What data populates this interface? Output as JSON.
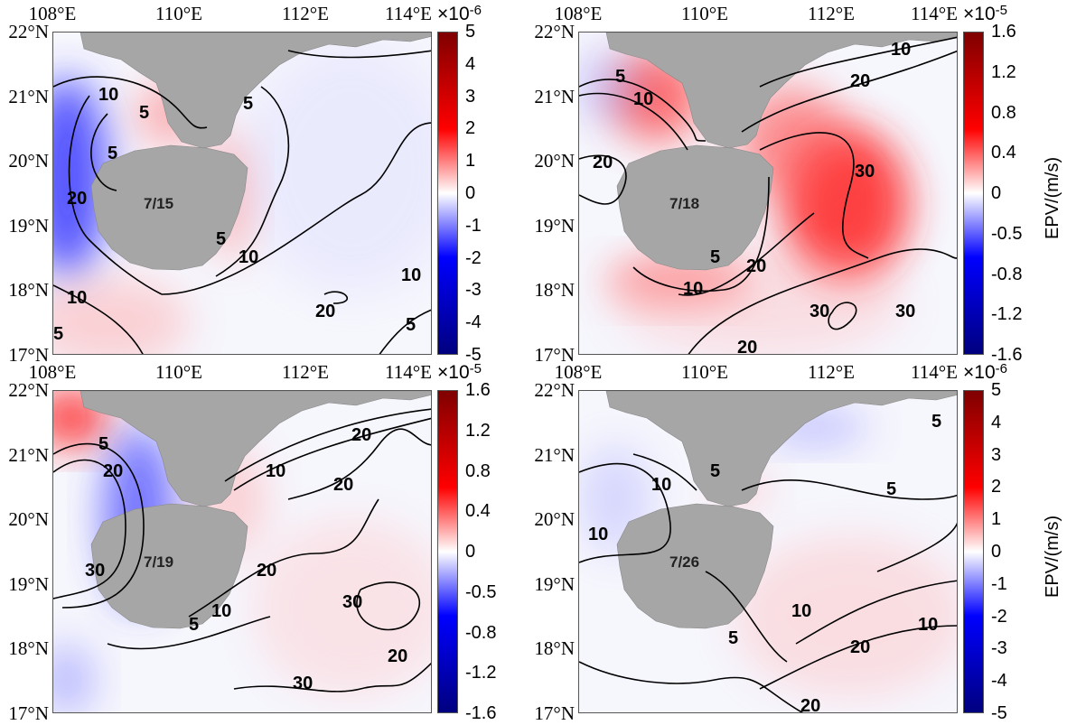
{
  "figure": {
    "x_ticks": [
      "108°E",
      "110°E",
      "112°E",
      "114°E"
    ],
    "y_ticks": [
      "22°N",
      "21°N",
      "20°N",
      "19°N",
      "18°N",
      "17°N"
    ],
    "colorbar_label": "EPV/(m/s)",
    "colors": {
      "land": "#a6a6a6",
      "positive": "#ff0000",
      "negative": "#0000ff",
      "contour": "#000000"
    },
    "panels": [
      {
        "date": "7/15",
        "exp_base": "×10",
        "exp_power": "-6",
        "cbar_ticks": [
          "5",
          "4",
          "3",
          "2",
          "1",
          "0",
          "-1",
          "-2",
          "-3",
          "-4",
          "-5"
        ],
        "contour_labels": [
          "10",
          "5",
          "5",
          "5",
          "20",
          "5",
          "10",
          "10",
          "20",
          "10",
          "5",
          "5"
        ]
      },
      {
        "date": "7/18",
        "exp_base": "×10",
        "exp_power": "-5",
        "cbar_ticks": [
          "1.6",
          "1.2",
          "0.8",
          "0.4",
          "0",
          "-0.5",
          "-0.8",
          "-1.2",
          "-1.6"
        ],
        "contour_labels": [
          "5",
          "10",
          "10",
          "20",
          "20",
          "30",
          "5",
          "10",
          "20",
          "30",
          "30",
          "20"
        ]
      },
      {
        "date": "7/19",
        "exp_base": "×10",
        "exp_power": "-5",
        "cbar_ticks": [
          "1.6",
          "1.2",
          "0.8",
          "0.4",
          "0",
          "-0.5",
          "-0.8",
          "-1.2",
          "-1.6"
        ],
        "contour_labels": [
          "5",
          "20",
          "30",
          "10",
          "20",
          "20",
          "20",
          "5",
          "10",
          "30",
          "30",
          "20"
        ]
      },
      {
        "date": "7/26",
        "exp_base": "×10",
        "exp_power": "-6",
        "cbar_ticks": [
          "5",
          "4",
          "3",
          "2",
          "1",
          "0",
          "-1",
          "-2",
          "-3",
          "-4",
          "-5"
        ],
        "contour_labels": [
          "5",
          "10",
          "10",
          "5",
          "5",
          "10",
          "5",
          "20",
          "10",
          "20"
        ]
      }
    ]
  }
}
